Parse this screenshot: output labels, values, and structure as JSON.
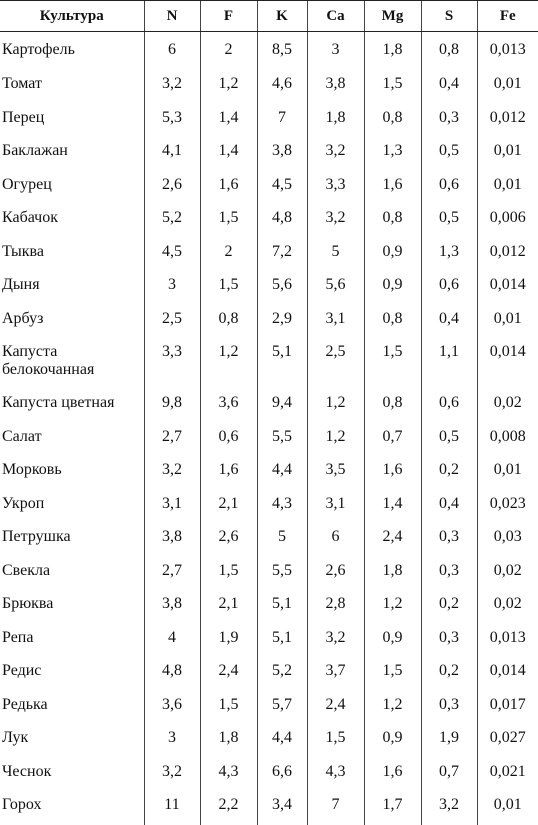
{
  "table": {
    "headers": [
      "Культура",
      "N",
      "F",
      "K",
      "Ca",
      "Mg",
      "S",
      "Fe"
    ],
    "rows": [
      [
        "Картофель",
        "6",
        "2",
        "8,5",
        "3",
        "1,8",
        "0,8",
        "0,013"
      ],
      [
        "Томат",
        "3,2",
        "1,2",
        "4,6",
        "3,8",
        "1,5",
        "0,4",
        "0,01"
      ],
      [
        "Перец",
        "5,3",
        "1,4",
        "7",
        "1,8",
        "0,8",
        "0,3",
        "0,012"
      ],
      [
        "Баклажан",
        "4,1",
        "1,4",
        "3,8",
        "3,2",
        "1,3",
        "0,5",
        "0,01"
      ],
      [
        "Огурец",
        "2,6",
        "1,6",
        "4,5",
        "3,3",
        "1,6",
        "0,6",
        "0,01"
      ],
      [
        "Кабачок",
        "5,2",
        "1,5",
        "4,8",
        "3,2",
        "0,8",
        "0,5",
        "0,006"
      ],
      [
        "Тыква",
        "4,5",
        "2",
        "7,2",
        "5",
        "0,9",
        "1,3",
        "0,012"
      ],
      [
        "Дыня",
        "3",
        "1,5",
        "5,6",
        "5,6",
        "0,9",
        "0,6",
        "0,014"
      ],
      [
        "Арбуз",
        "2,5",
        "0,8",
        "2,9",
        "3,1",
        "0,8",
        "0,4",
        "0,01"
      ],
      [
        "Капуста белокочанная",
        "3,3",
        "1,2",
        "5,1",
        "2,5",
        "1,5",
        "1,1",
        "0,014"
      ],
      [
        "Капуста цветная",
        "9,8",
        "3,6",
        "9,4",
        "1,2",
        "0,8",
        "0,6",
        "0,02"
      ],
      [
        "Салат",
        "2,7",
        "0,6",
        "5,5",
        "1,2",
        "0,7",
        "0,5",
        "0,008"
      ],
      [
        "Морковь",
        "3,2",
        "1,6",
        "4,4",
        "3,5",
        "1,6",
        "0,2",
        "0,01"
      ],
      [
        "Укроп",
        "3,1",
        "2,1",
        "4,3",
        "3,1",
        "1,4",
        "0,4",
        "0,023"
      ],
      [
        "Петрушка",
        "3,8",
        "2,6",
        "5",
        "6",
        "2,4",
        "0,3",
        "0,03"
      ],
      [
        "Свекла",
        "2,7",
        "1,5",
        "5,5",
        "2,6",
        "1,8",
        "0,3",
        "0,02"
      ],
      [
        "Брюква",
        "3,8",
        "2,1",
        "5,1",
        "2,8",
        "1,2",
        "0,2",
        "0,02"
      ],
      [
        "Репа",
        "4",
        "1,9",
        "5,1",
        "3,2",
        "0,9",
        "0,3",
        "0,013"
      ],
      [
        "Редис",
        "4,8",
        "2,4",
        "5,2",
        "3,7",
        "1,5",
        "0,2",
        "0,014"
      ],
      [
        "Редька",
        "3,6",
        "1,5",
        "5,7",
        "2,4",
        "1,2",
        "0,3",
        "0,017"
      ],
      [
        "Лук",
        "3",
        "1,8",
        "4,4",
        "1,5",
        "0,9",
        "1,9",
        "0,027"
      ],
      [
        "Чеснок",
        "3,2",
        "4,3",
        "6,6",
        "4,3",
        "1,6",
        "0,7",
        "0,021"
      ],
      [
        "Горох",
        "11",
        "2,2",
        "3,4",
        "7",
        "1,7",
        "3,2",
        "0,01"
      ]
    ]
  }
}
